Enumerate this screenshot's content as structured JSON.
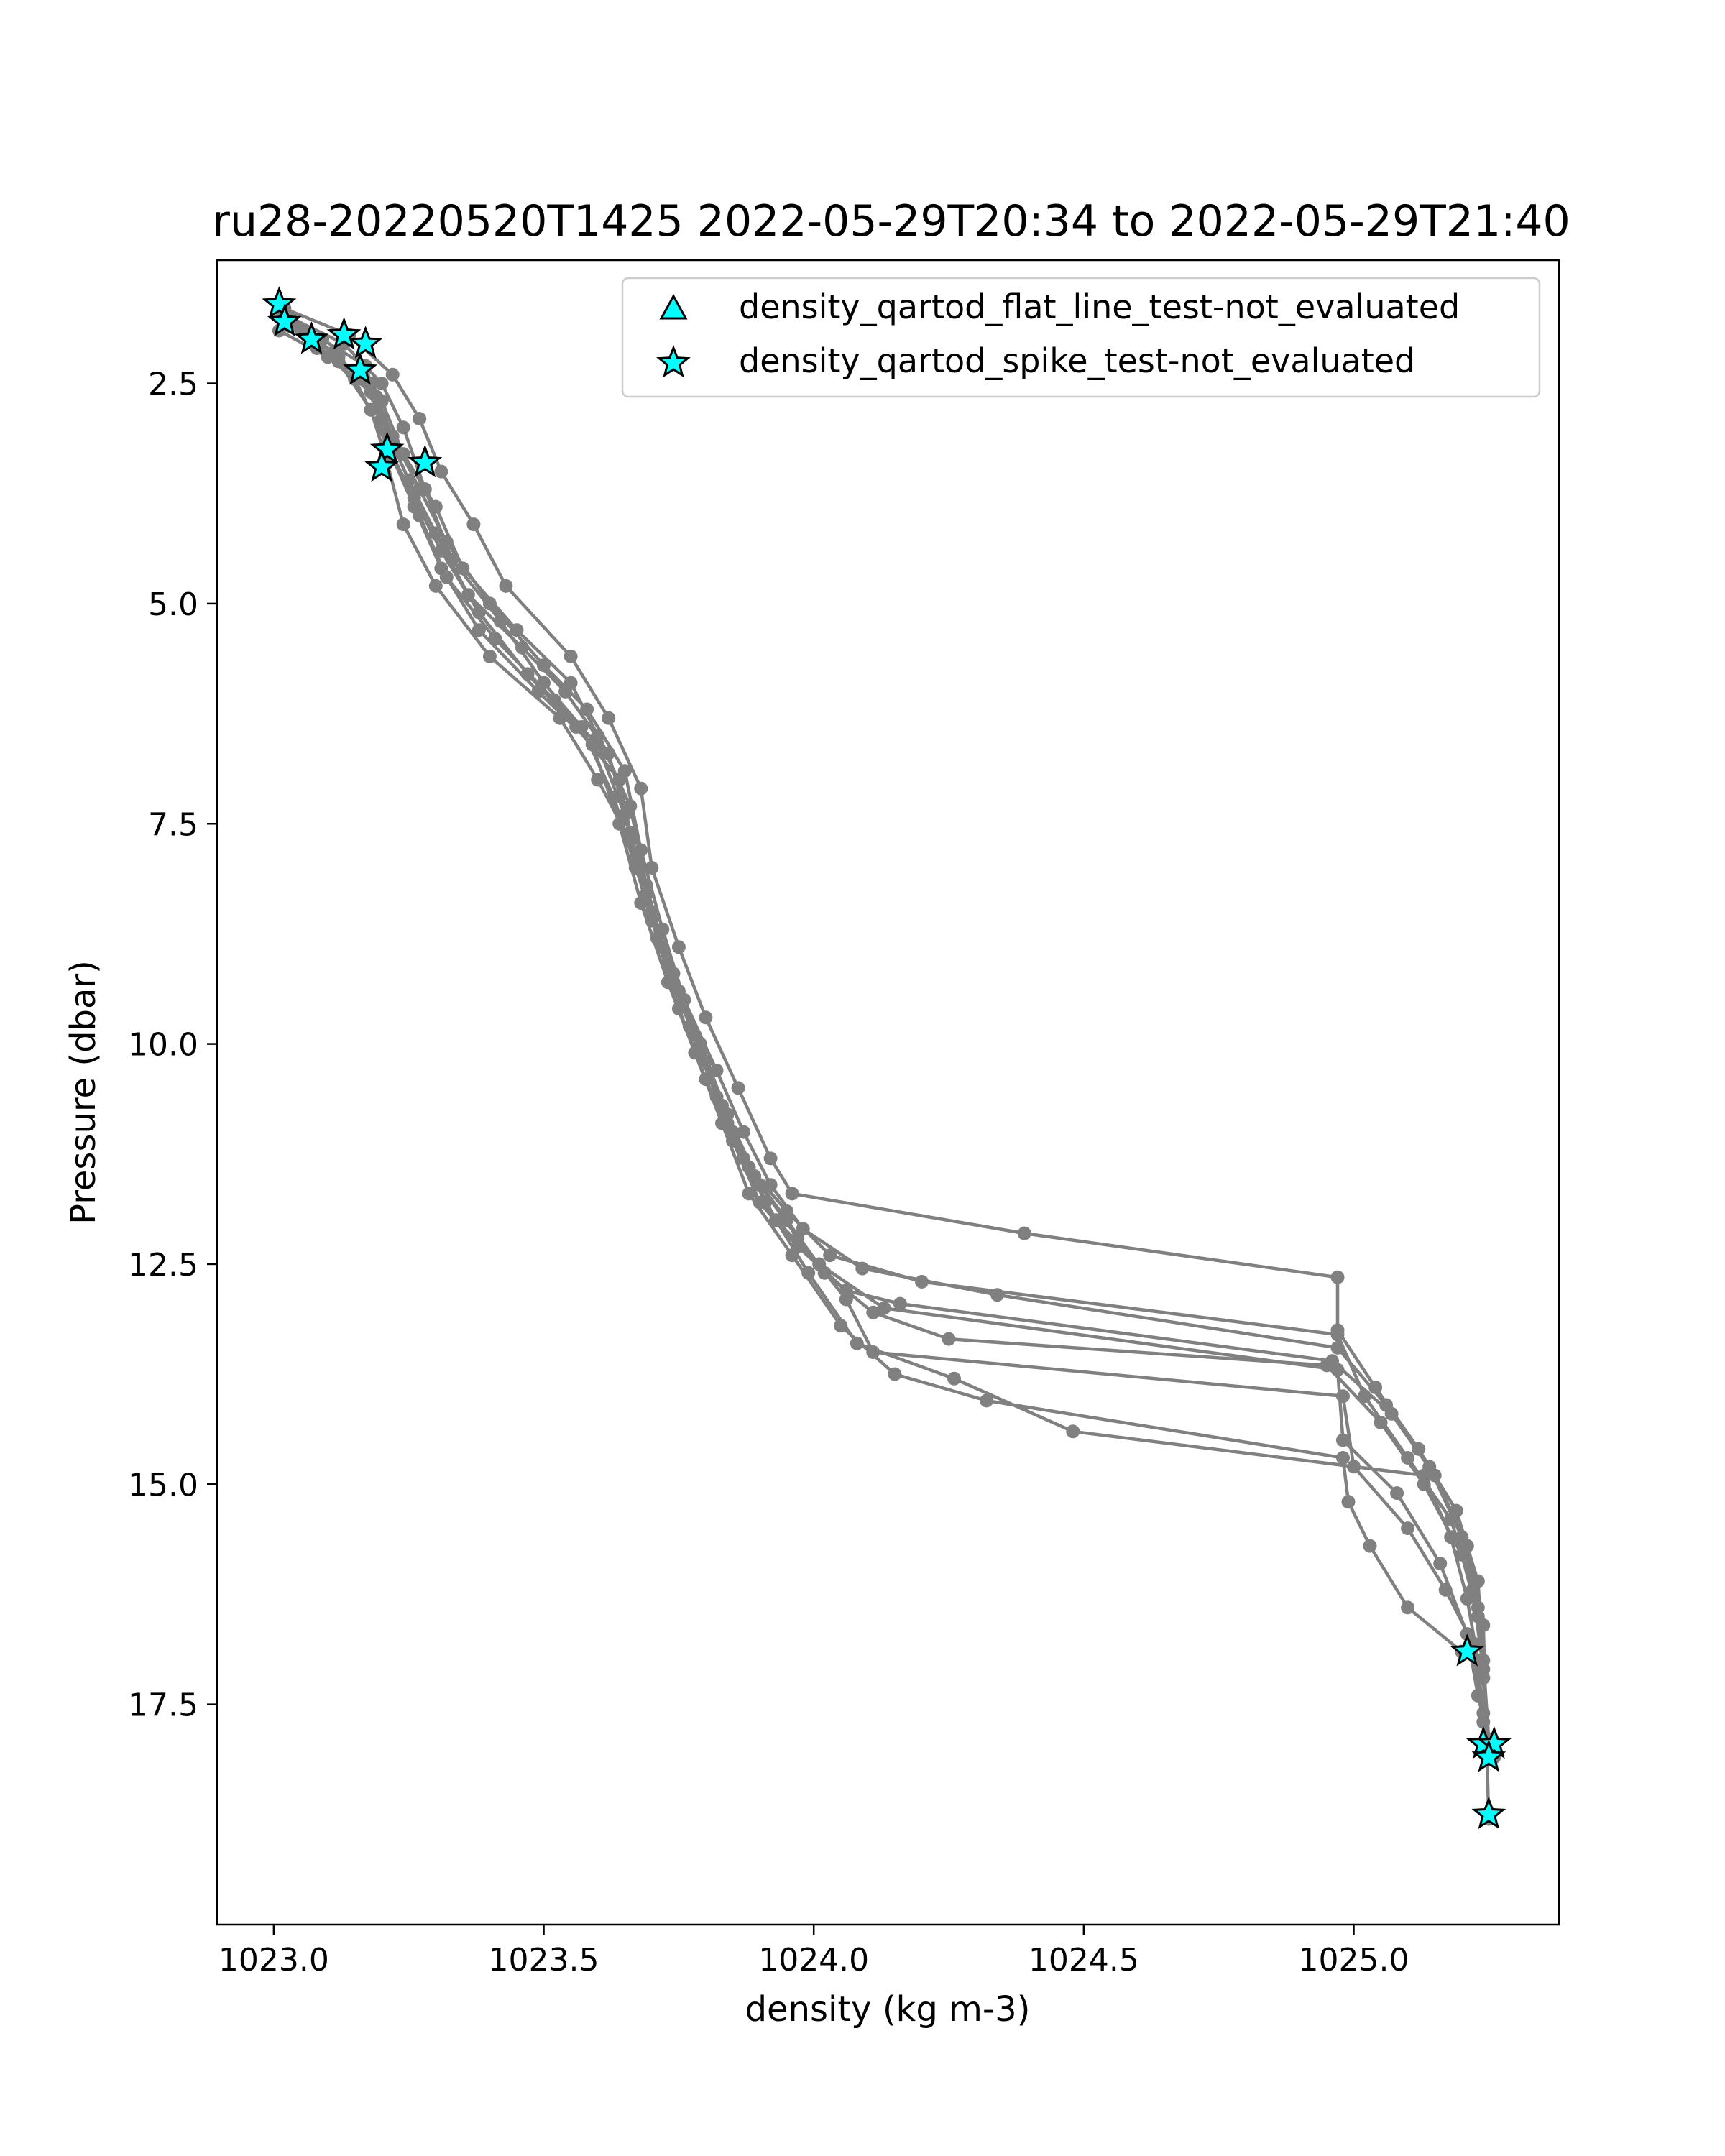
{
  "chart_data": {
    "type": "line",
    "title": "ru28-20220520T1425 2022-05-29T20:34 to 2022-05-29T21:40",
    "xlabel": "density (kg m-3)",
    "ylabel": "Pressure (dbar)",
    "xlim": [
      1022.895,
      1025.38
    ],
    "ylim": [
      20.0,
      1.1
    ],
    "y_inverted": true,
    "grid": false,
    "legend_position": "top-right",
    "colors": {
      "profile_line": "#808080",
      "marker_fill": "#00ffff",
      "marker_edge": "#000000"
    },
    "x_ticks": [
      {
        "value": 1023.0,
        "label": "1023.0"
      },
      {
        "value": 1023.5,
        "label": "1023.5"
      },
      {
        "value": 1024.0,
        "label": "1024.0"
      },
      {
        "value": 1024.5,
        "label": "1024.5"
      },
      {
        "value": 1025.0,
        "label": "1025.0"
      }
    ],
    "y_ticks": [
      {
        "value": 2.5,
        "label": "2.5"
      },
      {
        "value": 5.0,
        "label": "5.0"
      },
      {
        "value": 7.5,
        "label": "7.5"
      },
      {
        "value": 10.0,
        "label": "10.0"
      },
      {
        "value": 12.5,
        "label": "12.5"
      },
      {
        "value": 15.0,
        "label": "15.0"
      },
      {
        "value": 17.5,
        "label": "17.5"
      }
    ],
    "legend": [
      {
        "label": "density_qartod_flat_line_test-not_evaluated",
        "marker": "triangle"
      },
      {
        "label": "density_qartod_spike_test-not_evaluated",
        "marker": "star"
      }
    ],
    "series": [
      {
        "points": [
          [
            1023.02,
            1.65
          ],
          [
            1023.14,
            1.95
          ],
          [
            1023.22,
            2.4
          ],
          [
            1023.27,
            2.9
          ],
          [
            1023.31,
            3.5
          ],
          [
            1023.37,
            4.1
          ],
          [
            1023.43,
            4.8
          ],
          [
            1023.55,
            5.6
          ],
          [
            1023.62,
            6.3
          ],
          [
            1023.68,
            7.1
          ],
          [
            1023.7,
            8.0
          ],
          [
            1023.75,
            8.9
          ],
          [
            1023.8,
            9.7
          ],
          [
            1023.86,
            10.5
          ],
          [
            1023.92,
            11.3
          ],
          [
            1023.96,
            11.7
          ],
          [
            1024.39,
            12.15
          ],
          [
            1024.97,
            12.65
          ],
          [
            1024.97,
            13.25
          ],
          [
            1025.04,
            13.9
          ],
          [
            1025.12,
            14.6
          ],
          [
            1025.19,
            15.3
          ],
          [
            1025.23,
            16.1
          ],
          [
            1025.24,
            17.0
          ],
          [
            1025.25,
            17.9
          ]
        ]
      },
      {
        "points": [
          [
            1023.03,
            1.8
          ],
          [
            1023.12,
            2.2
          ],
          [
            1023.2,
            2.7
          ],
          [
            1023.24,
            3.3
          ],
          [
            1023.3,
            3.9
          ],
          [
            1023.35,
            4.6
          ],
          [
            1023.45,
            5.3
          ],
          [
            1023.55,
            5.9
          ],
          [
            1023.6,
            6.5
          ],
          [
            1023.66,
            7.3
          ],
          [
            1023.69,
            8.2
          ],
          [
            1023.73,
            9.1
          ],
          [
            1023.78,
            9.9
          ],
          [
            1023.83,
            10.7
          ],
          [
            1023.88,
            11.4
          ],
          [
            1023.95,
            11.9
          ],
          [
            1024.03,
            12.4
          ],
          [
            1024.2,
            12.7
          ],
          [
            1024.97,
            13.3
          ],
          [
            1025.02,
            14.0
          ],
          [
            1025.1,
            14.7
          ],
          [
            1025.18,
            15.4
          ],
          [
            1025.22,
            16.2
          ],
          [
            1025.24,
            17.1
          ],
          [
            1025.25,
            17.95
          ]
        ]
      },
      {
        "points": [
          [
            1023.03,
            1.85
          ],
          [
            1023.08,
            2.1
          ],
          [
            1023.18,
            2.5
          ],
          [
            1023.22,
            3.1
          ],
          [
            1023.27,
            3.7
          ],
          [
            1023.32,
            4.3
          ],
          [
            1023.4,
            5.0
          ],
          [
            1023.5,
            5.7
          ],
          [
            1023.58,
            6.2
          ],
          [
            1023.65,
            6.9
          ],
          [
            1023.68,
            7.8
          ],
          [
            1023.72,
            8.7
          ],
          [
            1023.76,
            9.5
          ],
          [
            1023.82,
            10.3
          ],
          [
            1023.87,
            11.0
          ],
          [
            1023.92,
            11.6
          ],
          [
            1023.98,
            12.1
          ],
          [
            1024.09,
            12.55
          ],
          [
            1024.34,
            12.85
          ],
          [
            1024.97,
            13.45
          ],
          [
            1025.06,
            14.1
          ],
          [
            1025.14,
            14.8
          ],
          [
            1025.2,
            15.6
          ],
          [
            1025.23,
            16.4
          ],
          [
            1025.25,
            18.1
          ]
        ]
      },
      {
        "points": [
          [
            1023.01,
            1.9
          ],
          [
            1023.1,
            2.2
          ],
          [
            1023.18,
            2.6
          ],
          [
            1023.21,
            3.2
          ],
          [
            1023.26,
            3.8
          ],
          [
            1023.31,
            4.4
          ],
          [
            1023.38,
            5.1
          ],
          [
            1023.47,
            5.8
          ],
          [
            1023.56,
            6.4
          ],
          [
            1023.64,
            7.0
          ],
          [
            1023.67,
            7.9
          ],
          [
            1023.71,
            8.8
          ],
          [
            1023.75,
            9.6
          ],
          [
            1023.8,
            10.4
          ],
          [
            1023.85,
            11.1
          ],
          [
            1023.9,
            11.8
          ],
          [
            1023.97,
            12.3
          ],
          [
            1024.06,
            12.8
          ],
          [
            1024.16,
            12.95
          ],
          [
            1024.96,
            13.6
          ],
          [
            1025.07,
            14.2
          ],
          [
            1025.15,
            14.9
          ],
          [
            1025.21,
            15.7
          ],
          [
            1025.24,
            16.6
          ],
          [
            1025.25,
            18.8
          ]
        ]
      },
      {
        "points": [
          [
            1023.02,
            1.7
          ],
          [
            1023.09,
            2.0
          ],
          [
            1023.17,
            2.3
          ],
          [
            1023.2,
            2.9
          ],
          [
            1023.25,
            3.6
          ],
          [
            1023.3,
            4.2
          ],
          [
            1023.36,
            4.9
          ],
          [
            1023.46,
            5.5
          ],
          [
            1023.54,
            6.0
          ],
          [
            1023.62,
            6.7
          ],
          [
            1023.66,
            7.6
          ],
          [
            1023.7,
            8.5
          ],
          [
            1023.74,
            9.3
          ],
          [
            1023.79,
            10.1
          ],
          [
            1023.84,
            10.9
          ],
          [
            1023.89,
            11.5
          ],
          [
            1023.95,
            12.0
          ],
          [
            1024.02,
            12.6
          ],
          [
            1024.11,
            13.05
          ],
          [
            1024.25,
            13.35
          ],
          [
            1024.95,
            13.65
          ],
          [
            1025.05,
            14.3
          ],
          [
            1025.13,
            15.0
          ],
          [
            1025.2,
            15.8
          ],
          [
            1025.23,
            16.5
          ],
          [
            1025.24,
            17.2
          ],
          [
            1025.25,
            18.0
          ]
        ]
      },
      {
        "points": [
          [
            1023.03,
            1.75
          ],
          [
            1023.13,
            2.05
          ],
          [
            1023.2,
            2.5
          ],
          [
            1023.24,
            3.0
          ],
          [
            1023.28,
            3.7
          ],
          [
            1023.33,
            4.5
          ],
          [
            1023.42,
            5.2
          ],
          [
            1023.5,
            5.9
          ],
          [
            1023.57,
            6.4
          ],
          [
            1023.63,
            7.2
          ],
          [
            1023.67,
            8.0
          ],
          [
            1023.72,
            8.9
          ],
          [
            1023.77,
            9.8
          ],
          [
            1023.82,
            10.6
          ],
          [
            1023.87,
            11.3
          ],
          [
            1023.93,
            12.0
          ],
          [
            1024.01,
            12.5
          ],
          [
            1024.13,
            13.0
          ],
          [
            1024.97,
            13.7
          ],
          [
            1024.98,
            14.5
          ],
          [
            1025.08,
            15.1
          ],
          [
            1025.16,
            15.9
          ],
          [
            1025.21,
            16.7
          ],
          [
            1025.23,
            17.4
          ],
          [
            1025.25,
            17.9
          ]
        ]
      },
      {
        "points": [
          [
            1023.01,
            1.65
          ],
          [
            1023.11,
            2.15
          ],
          [
            1023.19,
            2.65
          ],
          [
            1023.22,
            3.3
          ],
          [
            1023.27,
            4.0
          ],
          [
            1023.32,
            4.7
          ],
          [
            1023.41,
            5.4
          ],
          [
            1023.52,
            6.1
          ],
          [
            1023.6,
            6.6
          ],
          [
            1023.65,
            7.4
          ],
          [
            1023.69,
            8.3
          ],
          [
            1023.74,
            9.2
          ],
          [
            1023.79,
            10.0
          ],
          [
            1023.84,
            10.8
          ],
          [
            1023.9,
            11.6
          ],
          [
            1023.97,
            12.2
          ],
          [
            1024.06,
            12.9
          ],
          [
            1024.11,
            13.5
          ],
          [
            1024.98,
            14.0
          ],
          [
            1025.0,
            14.8
          ],
          [
            1025.1,
            15.5
          ],
          [
            1025.17,
            16.2
          ],
          [
            1025.22,
            16.8
          ],
          [
            1025.24,
            17.6
          ],
          [
            1025.26,
            18.1
          ]
        ]
      },
      {
        "points": [
          [
            1023.02,
            1.8
          ],
          [
            1023.07,
            2.0
          ],
          [
            1023.15,
            2.45
          ],
          [
            1023.21,
            3.2
          ],
          [
            1023.26,
            3.9
          ],
          [
            1023.31,
            4.6
          ],
          [
            1023.38,
            5.3
          ],
          [
            1023.49,
            6.0
          ],
          [
            1023.59,
            6.6
          ],
          [
            1023.64,
            7.5
          ],
          [
            1023.68,
            8.4
          ],
          [
            1023.73,
            9.3
          ],
          [
            1023.78,
            10.1
          ],
          [
            1023.83,
            10.9
          ],
          [
            1023.88,
            11.7
          ],
          [
            1023.96,
            12.4
          ],
          [
            1024.05,
            13.2
          ],
          [
            1024.15,
            13.75
          ],
          [
            1024.32,
            14.05
          ],
          [
            1024.98,
            14.7
          ],
          [
            1024.99,
            15.2
          ],
          [
            1025.03,
            15.7
          ],
          [
            1025.1,
            16.4
          ],
          [
            1025.2,
            16.9
          ]
        ]
      },
      {
        "points": [
          [
            1023.03,
            1.85
          ],
          [
            1023.12,
            2.25
          ],
          [
            1023.18,
            2.8
          ],
          [
            1023.21,
            3.4
          ],
          [
            1023.24,
            4.1
          ],
          [
            1023.3,
            4.8
          ],
          [
            1023.4,
            5.6
          ],
          [
            1023.53,
            6.3
          ],
          [
            1023.6,
            7.0
          ],
          [
            1023.66,
            7.7
          ],
          [
            1023.7,
            8.6
          ],
          [
            1023.75,
            9.4
          ],
          [
            1023.8,
            10.2
          ],
          [
            1023.85,
            11.0
          ],
          [
            1023.91,
            11.8
          ],
          [
            1023.99,
            12.6
          ],
          [
            1024.08,
            13.4
          ],
          [
            1024.26,
            13.8
          ],
          [
            1024.48,
            14.4
          ],
          [
            1025.13,
            14.9
          ],
          [
            1025.18,
            15.6
          ],
          [
            1025.21,
            16.3
          ],
          [
            1025.23,
            17.0
          ],
          [
            1025.24,
            17.7
          ]
        ]
      }
    ],
    "spike_test_not_evaluated": [
      [
        1023.01,
        1.6
      ],
      [
        1023.02,
        1.8
      ],
      [
        1023.07,
        2.0
      ],
      [
        1023.13,
        1.95
      ],
      [
        1023.17,
        2.05
      ],
      [
        1023.16,
        2.35
      ],
      [
        1023.21,
        3.25
      ],
      [
        1023.2,
        3.45
      ],
      [
        1023.28,
        3.4
      ],
      [
        1025.21,
        16.9
      ],
      [
        1025.24,
        17.95
      ],
      [
        1025.26,
        17.95
      ],
      [
        1025.25,
        18.1
      ],
      [
        1025.25,
        18.75
      ]
    ],
    "flat_line_test_not_evaluated": []
  }
}
